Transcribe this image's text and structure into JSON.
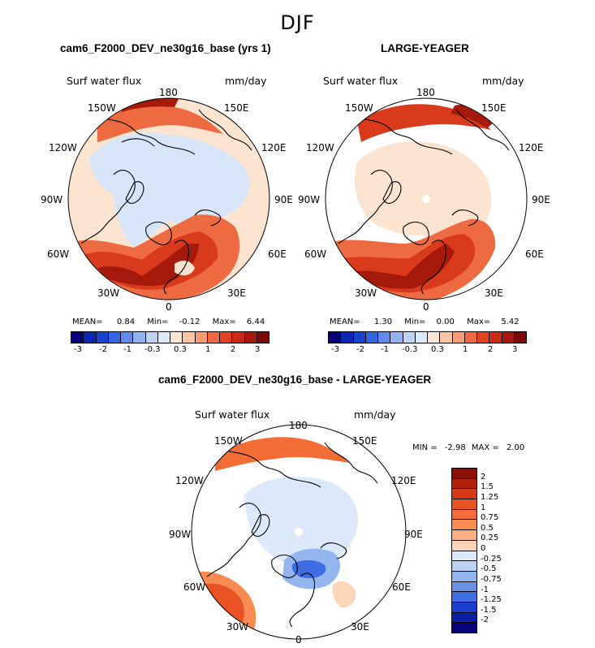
{
  "season": "DJF",
  "panels": [
    {
      "title": "cam6_F2000_DEV_ne30g16_base (yrs 1)",
      "variable": "Surf water flux",
      "units": "mm/day",
      "stats": {
        "mean_label": "MEAN=",
        "mean": "0.84",
        "min_label": "Min=",
        "min": "-0.12",
        "max_label": "Max=",
        "max": "6.44"
      }
    },
    {
      "title": "LARGE-YEAGER",
      "variable": "Surf water flux",
      "units": "mm/day",
      "stats": {
        "mean_label": "MEAN=",
        "mean": "1.30",
        "min_label": "Min=",
        "min": "0.00",
        "max_label": "Max=",
        "max": "5.42"
      }
    },
    {
      "title": "cam6_F2000_DEV_ne30g16_base - LARGE-YEAGER",
      "variable": "Surf water flux",
      "units": "mm/day",
      "stats": {
        "min_label": "MIN =",
        "min": "-2.98",
        "max_label": "MAX =",
        "max": "2.00"
      }
    }
  ],
  "longitude_labels": {
    "top": "180",
    "bottom": "0",
    "ul": "150W",
    "ur": "150E",
    "l1": "120W",
    "r1": "120E",
    "l2": "90W",
    "r2": "90E",
    "l3": "60W",
    "r3": "60E",
    "bl": "30W",
    "br": "30E"
  },
  "colorbar_top": {
    "labels": [
      "-3",
      "-2",
      "-1",
      "-0.3",
      "0.3",
      "1",
      "2",
      "3"
    ],
    "colors": [
      "#08007a",
      "#0a28b4",
      "#1644d2",
      "#3564e6",
      "#6289ee",
      "#92b2f2",
      "#bcd3f6",
      "#dbe9fb",
      "#fde6d4",
      "#fcc5a3",
      "#fb9a73",
      "#f4683f",
      "#e54223",
      "#cc2a14",
      "#a8180c",
      "#7a0a06"
    ]
  },
  "colorbar_diff": {
    "labels": [
      "2",
      "1.5",
      "1.25",
      "1",
      "0.75",
      "0.5",
      "0.25",
      "0",
      "-0.25",
      "-0.5",
      "-0.75",
      "-1",
      "-1.25",
      "-1.5",
      "-2"
    ],
    "colors": [
      "#8c1005",
      "#b3200c",
      "#d53a14",
      "#e95223",
      "#f46d36",
      "#f88a52",
      "#fbae83",
      "#fdd5b9",
      "#dbe9fb",
      "#bad2f4",
      "#94b6ef",
      "#6a92e9",
      "#3e6ce2",
      "#1c3ed2",
      "#0a1ea6",
      "#050478"
    ]
  },
  "map_colors": {
    "light_blue": "#d6e6f8",
    "peach": "#fde4d1",
    "red_light": "#ee6a40",
    "red_mid": "#d93a1c",
    "red_dark": "#a51a0b",
    "blue_mid": "#6d93e8",
    "blue_dark": "#2647d8",
    "white": "#ffffff"
  }
}
